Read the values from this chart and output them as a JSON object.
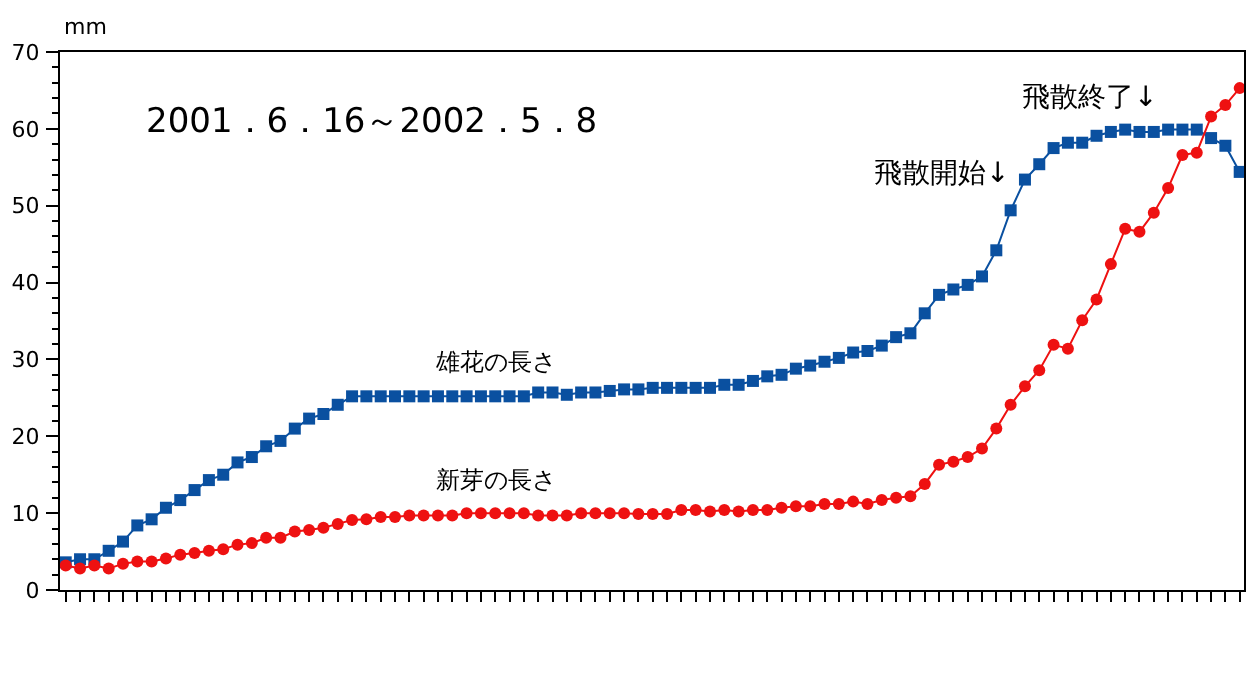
{
  "chart_data": {
    "type": "line",
    "ylabel": "mm",
    "annotations": [
      "2001．6．16～2002．5．8",
      "飛散開始↓",
      "飛散終了↓"
    ],
    "categories": [
      null,
      null,
      null,
      null,
      null,
      null,
      null,
      null,
      null,
      null,
      null,
      null,
      null,
      null,
      null,
      null,
      null,
      null,
      null,
      null,
      null,
      null,
      null,
      null,
      null,
      null,
      null,
      null,
      null,
      null,
      null,
      null,
      null,
      null,
      null,
      null,
      null,
      null,
      null,
      null,
      null,
      null,
      null,
      null,
      null,
      null,
      null,
      null,
      null,
      null,
      null,
      null,
      null,
      null,
      null,
      null,
      null,
      null,
      null,
      null,
      null,
      null,
      null,
      null,
      null,
      null,
      null,
      null,
      null,
      null,
      null,
      null,
      null,
      null,
      null,
      null,
      null,
      null,
      null,
      null,
      null,
      null,
      null
    ],
    "series": [
      {
        "name": "雄花の長さ",
        "color": "#0a50a0",
        "marker": "square",
        "values": [
          3.6,
          4.0,
          4.0,
          5.1,
          6.3,
          8.4,
          9.2,
          10.7,
          11.7,
          13.0,
          14.3,
          15.0,
          16.6,
          17.3,
          18.7,
          19.4,
          21.0,
          22.3,
          22.9,
          24.1,
          25.2,
          25.2,
          25.2,
          25.2,
          25.2,
          25.2,
          25.2,
          25.2,
          25.2,
          25.2,
          25.2,
          25.2,
          25.2,
          25.7,
          25.7,
          25.4,
          25.7,
          25.7,
          25.9,
          26.1,
          26.1,
          26.3,
          26.3,
          26.3,
          26.3,
          26.3,
          26.7,
          26.7,
          27.2,
          27.8,
          28.0,
          28.8,
          29.2,
          29.7,
          30.2,
          30.9,
          31.1,
          31.8,
          32.9,
          33.4,
          36.0,
          38.4,
          39.1,
          39.7,
          40.8,
          44.2,
          49.4,
          53.4,
          55.4,
          57.5,
          58.2,
          58.2,
          59.1,
          59.6,
          59.9,
          59.6,
          59.6,
          59.9,
          59.9,
          59.9,
          58.8,
          57.8,
          54.4
        ]
      },
      {
        "name": "新芽の長さ",
        "color": "#ee1111",
        "marker": "circle",
        "values": [
          3.2,
          2.8,
          3.2,
          2.8,
          3.4,
          3.7,
          3.7,
          4.1,
          4.6,
          4.8,
          5.1,
          5.3,
          5.9,
          6.1,
          6.8,
          6.8,
          7.6,
          7.8,
          8.1,
          8.6,
          9.1,
          9.2,
          9.5,
          9.5,
          9.7,
          9.7,
          9.7,
          9.7,
          10.0,
          10.0,
          10.0,
          10.0,
          10.0,
          9.7,
          9.7,
          9.7,
          10.0,
          10.0,
          10.0,
          10.0,
          9.9,
          9.9,
          9.9,
          10.4,
          10.4,
          10.2,
          10.4,
          10.2,
          10.4,
          10.4,
          10.7,
          10.9,
          10.9,
          11.2,
          11.2,
          11.5,
          11.2,
          11.7,
          12.0,
          12.2,
          13.8,
          16.3,
          16.7,
          17.3,
          18.4,
          21.0,
          24.1,
          26.5,
          28.6,
          31.9,
          31.4,
          35.1,
          37.8,
          42.4,
          47.0,
          46.6,
          49.1,
          52.3,
          56.6,
          56.9,
          61.6,
          63.1,
          65.3
        ]
      }
    ],
    "ylim": [
      0,
      70
    ],
    "yticks": [
      0,
      10,
      20,
      30,
      40,
      50,
      60,
      70
    ],
    "grid": false,
    "legend": false,
    "tick_labels": "y",
    "line_style": "solid"
  }
}
